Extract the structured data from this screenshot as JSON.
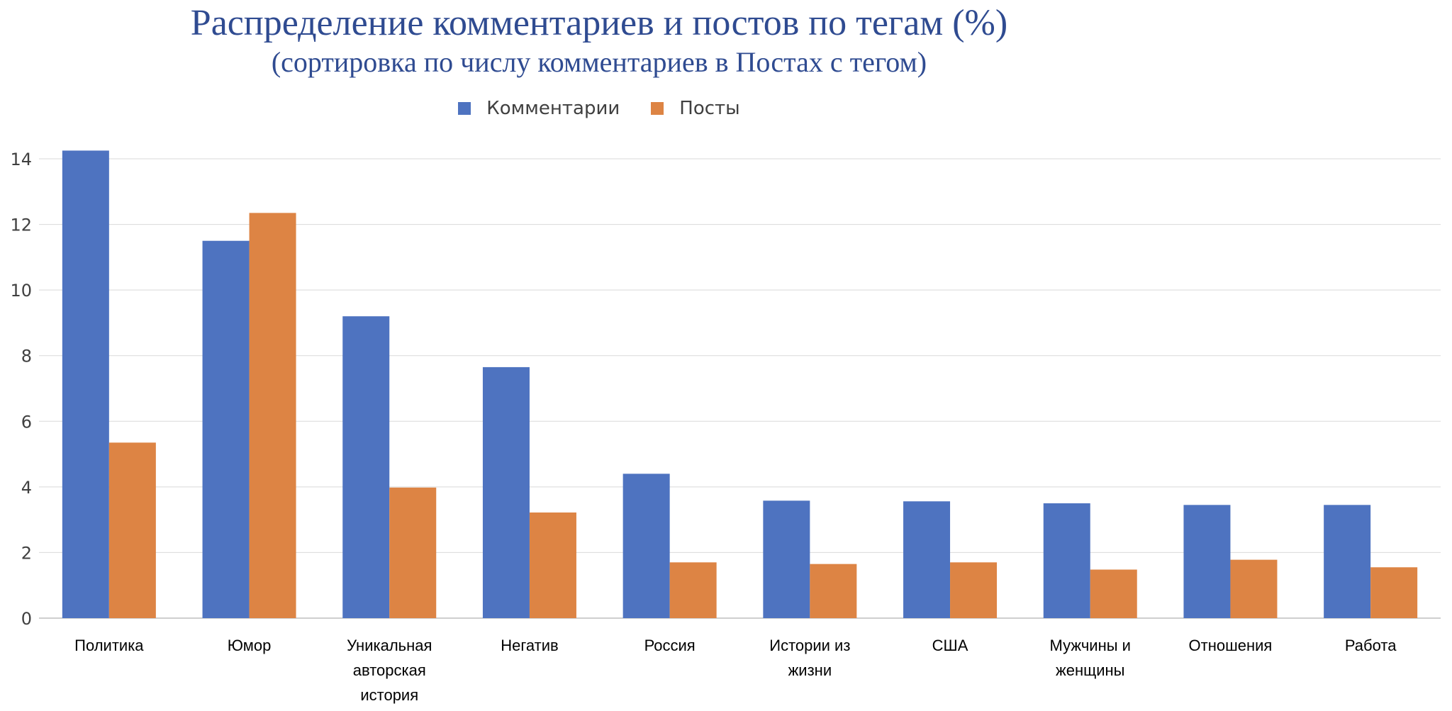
{
  "chart_data": {
    "type": "bar",
    "title": "Распределение комментариев и постов по тегам (%)",
    "subtitle": "(сортировка по числу комментариев в Постах с тегом)",
    "categories": [
      [
        "Политика"
      ],
      [
        "Юмор"
      ],
      [
        "Уникальная",
        "авторская",
        "история"
      ],
      [
        "Негатив"
      ],
      [
        "Россия"
      ],
      [
        "Истории из",
        "жизни"
      ],
      [
        "США"
      ],
      [
        "Мужчины и",
        "женщины"
      ],
      [
        "Отношения"
      ],
      [
        "Работа"
      ]
    ],
    "series": [
      {
        "name": "Комментарии",
        "color": "#4e73c0",
        "values": [
          14.25,
          11.5,
          9.2,
          7.65,
          4.4,
          3.58,
          3.56,
          3.5,
          3.45,
          3.45
        ]
      },
      {
        "name": "Посты",
        "color": "#dd8444",
        "values": [
          5.35,
          12.35,
          3.98,
          3.22,
          1.7,
          1.65,
          1.7,
          1.48,
          1.78,
          1.55
        ]
      }
    ],
    "ylim": [
      0,
      14
    ],
    "yticks": [
      0,
      2,
      4,
      6,
      8,
      10,
      12,
      14
    ],
    "grid": true,
    "legend": "top-center"
  }
}
